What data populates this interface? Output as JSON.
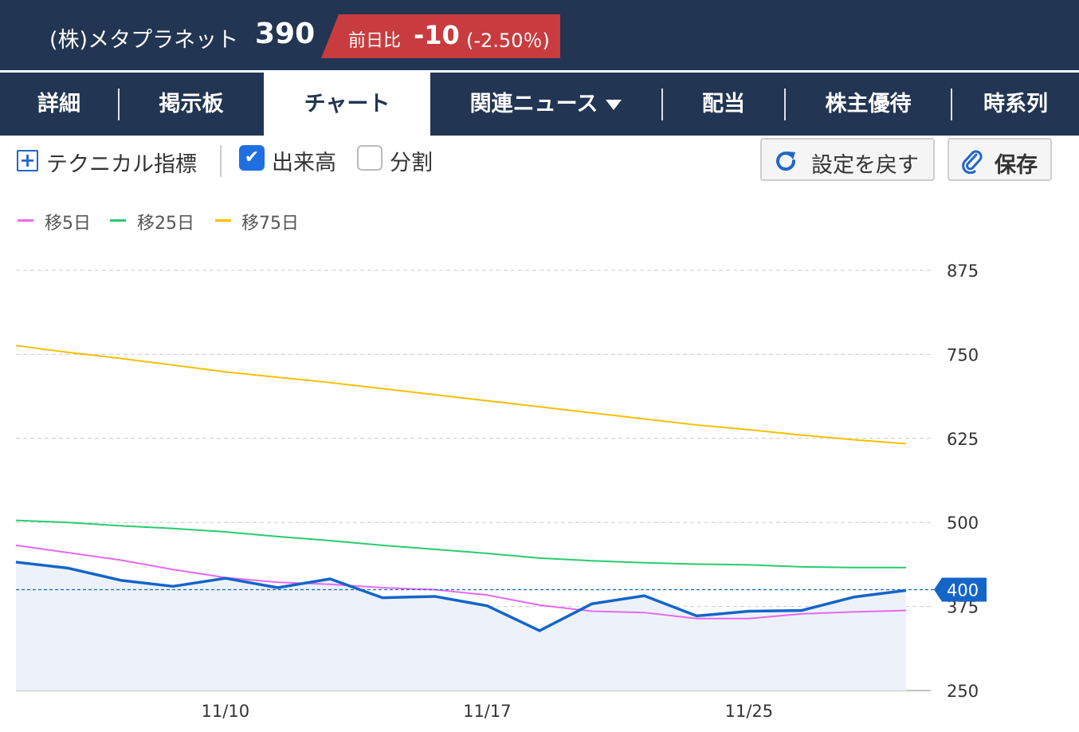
{
  "header": {
    "company": "(株)メタプラネット",
    "price": "390",
    "change_label": "前日比",
    "change_value": "-10",
    "change_pct": "(-2.50％)"
  },
  "tabs": [
    {
      "label": "詳細"
    },
    {
      "label": "掲示板"
    },
    {
      "label": "チャート",
      "active": true
    },
    {
      "label": "関連ニュース"
    },
    {
      "label": "配当"
    },
    {
      "label": "株主優待"
    },
    {
      "label": "時系列"
    }
  ],
  "toolbar": {
    "technical": "テクニカル指標",
    "volume": "出来高",
    "volume_checked": true,
    "split": "分割",
    "split_checked": false,
    "reset": "設定を戻す",
    "save": "保存"
  },
  "legend": [
    {
      "label": "移5日",
      "color": "#e36bf0"
    },
    {
      "label": "移25日",
      "color": "#28cc6e"
    },
    {
      "label": "移75日",
      "color": "#f5c000"
    }
  ],
  "chart_data": {
    "type": "line",
    "ylim": [
      250,
      875
    ],
    "yticks": [
      875,
      750,
      625,
      500,
      375,
      250
    ],
    "xticks": [
      {
        "label": "11/10",
        "index": 4
      },
      {
        "label": "11/17",
        "index": 9
      },
      {
        "label": "11/25",
        "index": 14
      }
    ],
    "current_price": 400,
    "current_label": "400",
    "price_color": "#1565c8",
    "series": [
      {
        "color": "#1565c8",
        "values": [
          441,
          432,
          414,
          405,
          417,
          403,
          416,
          388,
          390,
          376,
          339,
          379,
          391,
          361,
          368,
          369,
          389,
          399
        ]
      },
      {
        "color": "#e36bf0",
        "values": [
          466,
          455,
          444,
          430,
          418,
          411,
          408,
          403,
          400,
          392,
          377,
          368,
          366,
          357,
          357,
          364,
          367,
          369
        ]
      },
      {
        "color": "#28cc6e",
        "values": [
          503,
          500,
          495,
          491,
          486,
          479,
          473,
          466,
          460,
          454,
          447,
          443,
          440,
          438,
          437,
          434,
          433,
          433
        ]
      },
      {
        "color": "#f5c000",
        "values": [
          763,
          753,
          744,
          734,
          724,
          716,
          708,
          699,
          690,
          681,
          672,
          663,
          654,
          645,
          638,
          630,
          623,
          617
        ]
      }
    ]
  }
}
